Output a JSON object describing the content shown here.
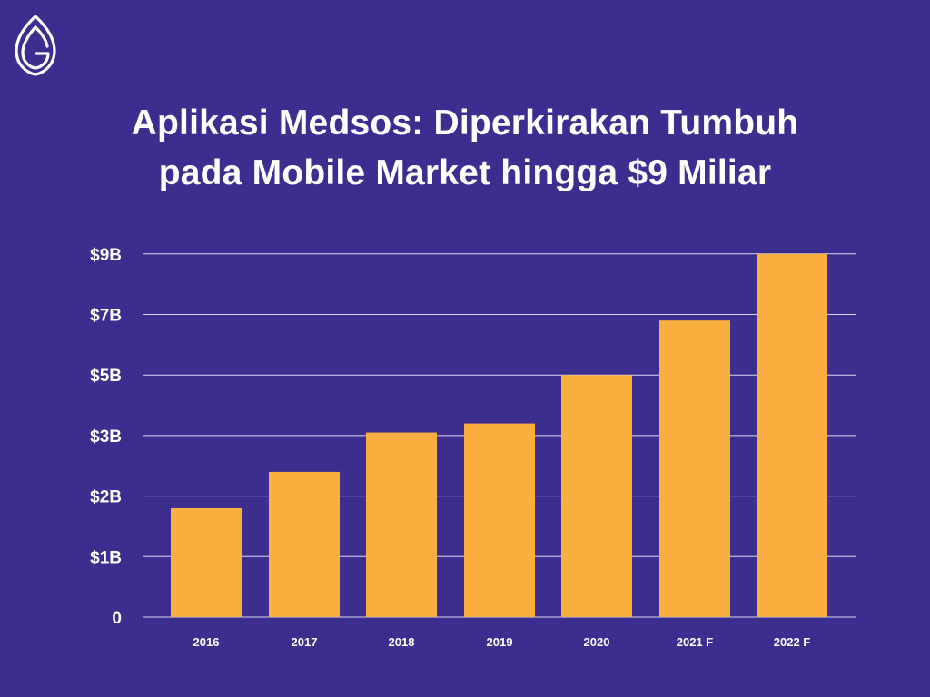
{
  "title": {
    "line1": "Aplikasi Medsos: Diperkirakan Tumbuh",
    "line2": "pada Mobile Market hingga $9 Miliar"
  },
  "colors": {
    "background": "#3b2e8f",
    "bar": "#fbaf41",
    "grid": "#d9d6ee",
    "text": "#ffffff"
  },
  "logo": {
    "icon": "leaf-g-logo-icon"
  },
  "chart_data": {
    "type": "bar",
    "title": "Aplikasi Medsos: Diperkirakan Tumbuh pada Mobile Market hingga $9 Miliar",
    "xlabel": "",
    "ylabel": "",
    "categories": [
      "2016",
      "2017",
      "2018",
      "2019",
      "2020",
      "2021 F",
      "2022 F"
    ],
    "values": [
      1.8,
      2.4,
      3.1,
      3.4,
      5.0,
      6.8,
      9.0
    ],
    "y_ticks": [
      {
        "label": "0",
        "value": 0
      },
      {
        "label": "$1B",
        "value": 1
      },
      {
        "label": "$2B",
        "value": 2
      },
      {
        "label": "$3B",
        "value": 3
      },
      {
        "label": "$5B",
        "value": 5
      },
      {
        "label": "$7B",
        "value": 7
      },
      {
        "label": "$9B",
        "value": 9
      }
    ],
    "grid": true,
    "legend": "none"
  }
}
